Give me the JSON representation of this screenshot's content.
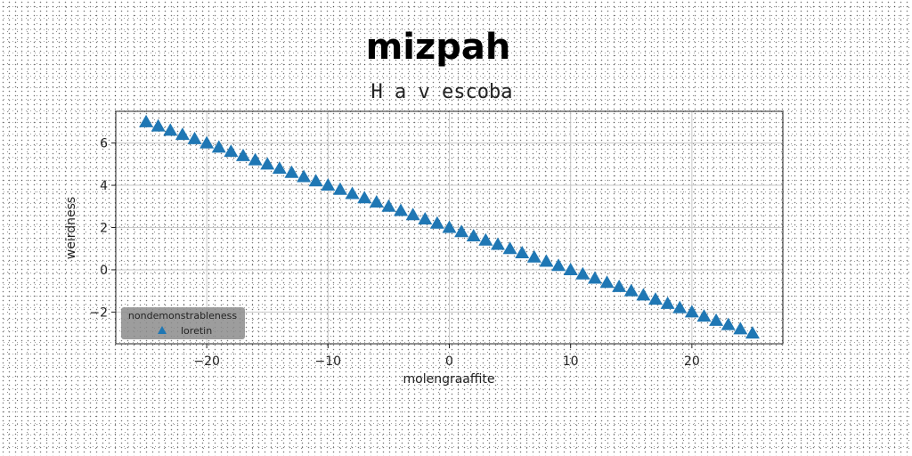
{
  "chart_data": {
    "type": "scatter",
    "title": "mizpah",
    "subtitle": "H a v escoba",
    "xlabel": "molengraaffite",
    "ylabel": "weirdness",
    "xlim": [
      -27.5,
      27.5
    ],
    "ylim": [
      -3.5,
      7.5
    ],
    "xticks": [
      -20,
      -10,
      0,
      10,
      20
    ],
    "yticks": [
      -2,
      0,
      2,
      4,
      6
    ],
    "grid": true,
    "legend": {
      "title": "nondemonstrableness",
      "placement": "lower-left"
    },
    "series": [
      {
        "name": "loretin",
        "marker": "triangle-up",
        "color": "#1f77b4",
        "x": [
          -25,
          -24,
          -23,
          -22,
          -21,
          -20,
          -19,
          -18,
          -17,
          -16,
          -15,
          -14,
          -13,
          -12,
          -11,
          -10,
          -9,
          -8,
          -7,
          -6,
          -5,
          -4,
          -3,
          -2,
          -1,
          0,
          1,
          2,
          3,
          4,
          5,
          6,
          7,
          8,
          9,
          10,
          11,
          12,
          13,
          14,
          15,
          16,
          17,
          18,
          19,
          20,
          21,
          22,
          23,
          24,
          25
        ],
        "y": [
          7.0,
          6.8,
          6.6,
          6.4,
          6.2,
          6.0,
          5.8,
          5.6,
          5.4,
          5.2,
          5.0,
          4.8,
          4.6,
          4.4,
          4.2,
          4.0,
          3.8,
          3.6,
          3.4,
          3.2,
          3.0,
          2.8,
          2.6,
          2.4,
          2.2,
          2.0,
          1.8,
          1.6,
          1.4,
          1.2,
          1.0,
          0.8,
          0.6,
          0.4,
          0.2,
          0.0,
          -0.2,
          -0.4,
          -0.6,
          -0.8,
          -1.0,
          -1.2,
          -1.4,
          -1.6,
          -1.8,
          -2.0,
          -2.2,
          -2.4,
          -2.6,
          -2.8,
          -3.0
        ]
      }
    ]
  }
}
